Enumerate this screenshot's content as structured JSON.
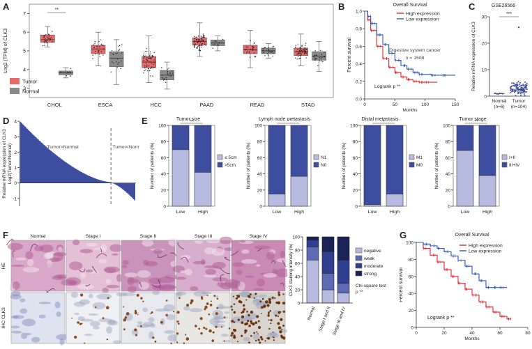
{
  "panel_letters": [
    "A",
    "B",
    "C",
    "D",
    "E",
    "F",
    "G"
  ],
  "colors": {
    "tumor": "#e8686b",
    "normal": "#8a8a8a",
    "navy": "#3d4ea1",
    "lavender": "#b7bbe0",
    "red": "#e3262c",
    "blue": "#2c58b5"
  },
  "chart_data": [
    {
      "id": "A",
      "type": "boxplot",
      "ylabel": "Log2 (TPM) of CLK3",
      "ylim": [
        2.5,
        7.5
      ],
      "yticks": [
        "3",
        "4",
        "5",
        "6",
        "7"
      ],
      "categories": [
        "CHOL",
        "ESCA",
        "HCC",
        "PAAD",
        "READ",
        "STAD"
      ],
      "series": [
        {
          "name": "Tumor",
          "boxes": [
            [
              5.2,
              5.45,
              5.6,
              5.85,
              6.3
            ],
            [
              4.2,
              4.85,
              5.1,
              5.3,
              6.0
            ],
            [
              3.3,
              4.1,
              4.4,
              4.7,
              5.8
            ],
            [
              4.7,
              5.3,
              5.5,
              5.7,
              6.5
            ],
            [
              4.1,
              4.85,
              5.05,
              5.3,
              6.1
            ],
            [
              4.2,
              4.75,
              4.95,
              5.15,
              5.9
            ]
          ]
        },
        {
          "name": "Normal",
          "boxes": [
            [
              3.55,
              3.72,
              3.82,
              3.92,
              4.1
            ],
            [
              3.2,
              4.15,
              4.6,
              4.95,
              5.6
            ],
            [
              2.95,
              3.45,
              3.7,
              3.95,
              4.4
            ],
            [
              5.0,
              5.28,
              5.42,
              5.58,
              5.8
            ],
            [
              4.6,
              4.85,
              5.0,
              5.15,
              5.4
            ],
            [
              3.9,
              4.5,
              4.72,
              4.95,
              5.5
            ]
          ]
        }
      ],
      "significance": [
        "**"
      ],
      "legend": [
        "Tumor",
        "Normal"
      ]
    },
    {
      "id": "B",
      "type": "line",
      "title": "Overall Survival",
      "xlabel": "Months",
      "ylabel": "Percent survival",
      "xlim": [
        0,
        150
      ],
      "ylim": [
        0,
        1.0
      ],
      "xticks": [
        "0",
        "50",
        "100",
        "150"
      ],
      "yticks": [
        "0.0",
        "0.2",
        "0.4",
        "0.6",
        "0.8",
        "1.0"
      ],
      "legend": [
        "High expression",
        "Low expression"
      ],
      "annotation": "Digestive system cancer",
      "n_label": "n = 1508",
      "logrank": "Logrank p **",
      "series": [
        {
          "name": "High expression",
          "points": [
            [
              0,
              1.0
            ],
            [
              5,
              0.9
            ],
            [
              10,
              0.78
            ],
            [
              20,
              0.6
            ],
            [
              30,
              0.46
            ],
            [
              40,
              0.36
            ],
            [
              50,
              0.3
            ],
            [
              60,
              0.25
            ],
            [
              70,
              0.22
            ],
            [
              80,
              0.2
            ],
            [
              90,
              0.19
            ],
            [
              100,
              0.19
            ],
            [
              120,
              0.19
            ]
          ]
        },
        {
          "name": "Low expression",
          "points": [
            [
              0,
              1.0
            ],
            [
              5,
              0.94
            ],
            [
              10,
              0.86
            ],
            [
              20,
              0.73
            ],
            [
              30,
              0.62
            ],
            [
              40,
              0.52
            ],
            [
              50,
              0.44
            ],
            [
              60,
              0.38
            ],
            [
              70,
              0.34
            ],
            [
              80,
              0.3
            ],
            [
              90,
              0.28
            ],
            [
              110,
              0.27
            ],
            [
              130,
              0.27
            ],
            [
              150,
              0.27
            ]
          ]
        }
      ]
    },
    {
      "id": "C",
      "type": "scatter",
      "title": "GSE26566",
      "ylabel": "Relative mRNA expression of CLK3",
      "ylim": [
        0,
        30
      ],
      "yticks": [
        "0",
        "10",
        "20",
        "30"
      ],
      "categories": [
        "Normal\n(n=6)",
        "Tumor\n(n=104)"
      ],
      "category_lines": [
        [
          "Normal",
          "(n=6)"
        ],
        [
          "Tumor",
          "(n=104)"
        ]
      ],
      "medians": [
        1.0,
        2.6
      ],
      "outlier": 26,
      "significance": "***"
    },
    {
      "id": "D",
      "type": "waterfall",
      "ylabel": "Relative mRNA expression of CLK3",
      "ylabel2": "Log2(Tumor/Normal)",
      "ylim": [
        -1.5,
        4
      ],
      "yticks": [
        "-1",
        "0",
        "1",
        "2",
        "3",
        "4"
      ],
      "labels": [
        "Tumor>Normal",
        "Tumor<Normal"
      ],
      "n_bars": 104,
      "crossover_index": 82
    },
    {
      "id": "E1",
      "type": "stacked_bar",
      "title": "Tumor size",
      "ylabel": "Number of patients (%)",
      "ylim": [
        0,
        100
      ],
      "yticks": [
        "0",
        "20",
        "40",
        "60",
        "80",
        "100"
      ],
      "categories": [
        "Low",
        "High"
      ],
      "series": [
        {
          "name": "≤ 5cm",
          "values": [
            70,
            42
          ]
        },
        {
          "name": ">5cm",
          "values": [
            30,
            58
          ]
        }
      ],
      "significance": "**"
    },
    {
      "id": "E2",
      "type": "stacked_bar",
      "title": "Lymph node metastasis",
      "ylabel": "Number of patients (%)",
      "ylim": [
        0,
        100
      ],
      "yticks": [
        "0",
        "20",
        "40",
        "60",
        "80",
        "100"
      ],
      "categories": [
        "Low",
        "High"
      ],
      "series": [
        {
          "name": "N1",
          "values": [
            15,
            37
          ]
        },
        {
          "name": "N0",
          "values": [
            85,
            63
          ]
        }
      ],
      "significance": "*"
    },
    {
      "id": "E3",
      "type": "stacked_bar",
      "title": "Distal metastasis",
      "ylabel": "Number of patients (%)",
      "ylim": [
        0,
        100
      ],
      "yticks": [
        "0",
        "20",
        "40",
        "60",
        "80",
        "100"
      ],
      "categories": [
        "Low",
        "High"
      ],
      "series": [
        {
          "name": "M1",
          "values": [
            2,
            15
          ]
        },
        {
          "name": "M0",
          "values": [
            98,
            85
          ]
        }
      ],
      "significance": "*"
    },
    {
      "id": "E4",
      "type": "stacked_bar",
      "title": "Tumor stage",
      "ylabel": "Number of patients (%)",
      "ylim": [
        0,
        100
      ],
      "yticks": [
        "0",
        "20",
        "40",
        "60",
        "80",
        "100"
      ],
      "categories": [
        "Low",
        "High"
      ],
      "series": [
        {
          "name": "I+II",
          "values": [
            69,
            38
          ]
        },
        {
          "name": "III+IV",
          "values": [
            31,
            62
          ]
        }
      ],
      "significance": "**"
    },
    {
      "id": "F",
      "type": "stacked_bar",
      "ylabel": "CLK3 staining intensity (%)",
      "ylim": [
        0,
        100
      ],
      "yticks": [
        "0",
        "20",
        "40",
        "60",
        "80",
        "100"
      ],
      "categories": [
        "Normal",
        "Stage I and II",
        "Stage III and IV"
      ],
      "series": [
        {
          "name": "negative",
          "values": [
            65,
            20,
            15
          ]
        },
        {
          "name": "weak",
          "values": [
            20,
            25,
            15
          ]
        },
        {
          "name": "moderate",
          "values": [
            10,
            33,
            35
          ]
        },
        {
          "name": "strong",
          "values": [
            5,
            22,
            35
          ]
        }
      ],
      "annotation": [
        "Chi-square test",
        "p **"
      ]
    },
    {
      "id": "G",
      "type": "line",
      "title": "Overall Survival",
      "xlabel": "Months",
      "ylabel": "Percent survival",
      "xlim": [
        0,
        80
      ],
      "ylim": [
        0,
        100
      ],
      "xticks": [
        "0",
        "20",
        "40",
        "60",
        "80"
      ],
      "yticks": [
        "0",
        "20",
        "40",
        "60",
        "80",
        "100"
      ],
      "legend": [
        "High expression",
        "Low expression"
      ],
      "logrank": "Logrank p **",
      "series": [
        {
          "name": "High expression",
          "points": [
            [
              0,
              100
            ],
            [
              5,
              93
            ],
            [
              10,
              85
            ],
            [
              15,
              77
            ],
            [
              20,
              68
            ],
            [
              25,
              60
            ],
            [
              30,
              52
            ],
            [
              35,
              45
            ],
            [
              40,
              38
            ],
            [
              45,
              30
            ],
            [
              50,
              24
            ],
            [
              55,
              18
            ],
            [
              60,
              13
            ],
            [
              65,
              10
            ],
            [
              68,
              10
            ]
          ]
        },
        {
          "name": "Low expression",
          "points": [
            [
              0,
              100
            ],
            [
              5,
              98
            ],
            [
              10,
              96
            ],
            [
              15,
              93
            ],
            [
              20,
              89
            ],
            [
              25,
              84
            ],
            [
              30,
              79
            ],
            [
              35,
              72
            ],
            [
              40,
              63
            ],
            [
              45,
              55
            ],
            [
              50,
              47
            ],
            [
              55,
              47
            ],
            [
              60,
              47
            ],
            [
              65,
              47
            ]
          ]
        }
      ]
    }
  ],
  "histology": {
    "columns": [
      "Normal",
      "Stage I",
      "Stage II",
      "Stage III",
      "Stage IV"
    ],
    "rows": [
      "HE",
      "IHC CLK3"
    ]
  }
}
